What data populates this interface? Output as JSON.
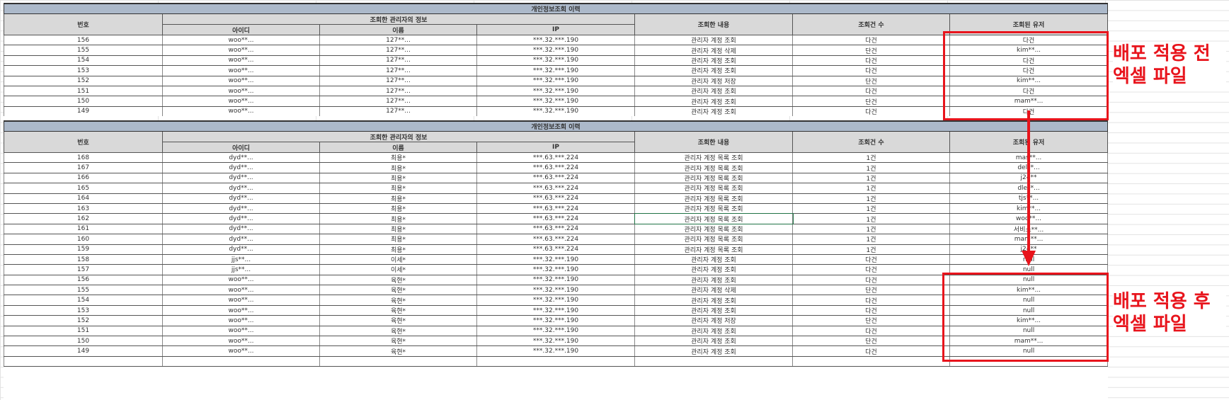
{
  "title": "개인정보조회 이력",
  "headers": {
    "no": "번호",
    "admin_group": "조회한 관리자의 정보",
    "id": "아이디",
    "name": "이름",
    "ip": "IP",
    "content": "조회한 내용",
    "count": "조회건 수",
    "target_user": "조회된 유저"
  },
  "before_table": {
    "rows": [
      [
        "156",
        "woo**...",
        "127**...",
        "***.32.***.190",
        "관리자 계정 조회",
        "다건",
        "다건"
      ],
      [
        "155",
        "woo**...",
        "127**...",
        "***.32.***.190",
        "관리자 계정 삭제",
        "단건",
        "kim**..."
      ],
      [
        "154",
        "woo**...",
        "127**...",
        "***.32.***.190",
        "관리자 계정 조회",
        "다건",
        "다건"
      ],
      [
        "153",
        "woo**...",
        "127**...",
        "***.32.***.190",
        "관리자 계정 조회",
        "다건",
        "다건"
      ],
      [
        "152",
        "woo**...",
        "127**...",
        "***.32.***.190",
        "관리자 계정 저장",
        "단건",
        "kim**..."
      ],
      [
        "151",
        "woo**...",
        "127**...",
        "***.32.***.190",
        "관리자 계정 조회",
        "다건",
        "다건"
      ],
      [
        "150",
        "woo**...",
        "127**...",
        "***.32.***.190",
        "관리자 계정 조회",
        "단건",
        "mam**..."
      ],
      [
        "149",
        "woo**...",
        "127**...",
        "***.32.***.190",
        "관리자 계정 조회",
        "다건",
        "다건"
      ]
    ]
  },
  "after_table": {
    "rows": [
      [
        "168",
        "dyd**...",
        "최용*",
        "***.63.***.224",
        "관리자 계정 목록 조회",
        "1건",
        "mas**..."
      ],
      [
        "167",
        "dyd**...",
        "최용*",
        "***.63.***.224",
        "관리자 계정 목록 조회",
        "1건",
        "del**..."
      ],
      [
        "166",
        "dyd**...",
        "최용*",
        "***.63.***.224",
        "관리자 계정 목록 조회",
        "1건",
        "j24**"
      ],
      [
        "165",
        "dyd**...",
        "최용*",
        "***.63.***.224",
        "관리자 계정 목록 조회",
        "1건",
        "dle**..."
      ],
      [
        "164",
        "dyd**...",
        "최용*",
        "***.63.***.224",
        "관리자 계정 목록 조회",
        "1건",
        "tjs**..."
      ],
      [
        "163",
        "dyd**...",
        "최용*",
        "***.63.***.224",
        "관리자 계정 목록 조회",
        "1건",
        "kim**..."
      ],
      [
        "162",
        "dyd**...",
        "최용*",
        "***.63.***.224",
        "관리자 계정 목록 조회",
        "1건",
        "woo**..."
      ],
      [
        "161",
        "dyd**...",
        "최용*",
        "***.63.***.224",
        "관리자 계정 목록 조회",
        "1건",
        "서비스**..."
      ],
      [
        "160",
        "dyd**...",
        "최용*",
        "***.63.***.224",
        "관리자 계정 목록 조회",
        "1건",
        "mam**..."
      ],
      [
        "159",
        "dyd**...",
        "최용*",
        "***.63.***.224",
        "관리자 계정 목록 조회",
        "1건",
        "j24**"
      ],
      [
        "158",
        "jjs**...",
        "이세*",
        "***.32.***.190",
        "관리자 계정 조회",
        "다건",
        "null"
      ],
      [
        "157",
        "jjs**...",
        "이세*",
        "***.32.***.190",
        "관리자 계정 조회",
        "다건",
        "null"
      ],
      [
        "156",
        "woo**...",
        "육현*",
        "***.32.***.190",
        "관리자 계정 조회",
        "다건",
        "null"
      ],
      [
        "155",
        "woo**...",
        "육현*",
        "***.32.***.190",
        "관리자 계정 삭제",
        "단건",
        "kim**..."
      ],
      [
        "154",
        "woo**...",
        "육현*",
        "***.32.***.190",
        "관리자 계정 조회",
        "다건",
        "null"
      ],
      [
        "153",
        "woo**...",
        "육현*",
        "***.32.***.190",
        "관리자 계정 조회",
        "다건",
        "null"
      ],
      [
        "152",
        "woo**...",
        "육현*",
        "***.32.***.190",
        "관리자 계정 저장",
        "단건",
        "kim**..."
      ],
      [
        "151",
        "woo**...",
        "육현*",
        "***.32.***.190",
        "관리자 계정 조회",
        "다건",
        "null"
      ],
      [
        "150",
        "woo**...",
        "육현*",
        "***.32.***.190",
        "관리자 계정 조회",
        "단건",
        "mam**..."
      ],
      [
        "149",
        "woo**...",
        "육현*",
        "***.32.***.190",
        "관리자 계정 조회",
        "다건",
        "null"
      ]
    ]
  },
  "annotations": {
    "before_label": "배포 적용 전 엑셀 파일",
    "after_label": "배포 적용 후 엑셀 파일",
    "color": "#e8141c"
  }
}
